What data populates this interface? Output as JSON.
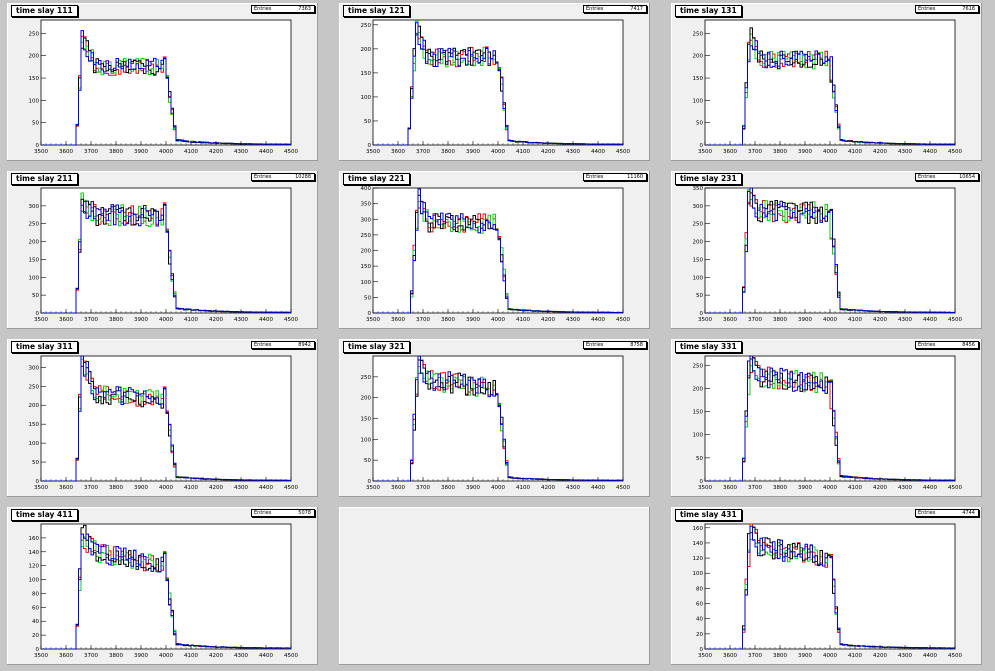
{
  "colors": {
    "series1": "#000000",
    "series2": "#e01010",
    "series3": "#10d010",
    "series4": "#0000cc"
  },
  "chart_data": [
    {
      "type": "histogram",
      "title": "time slay 111",
      "stat_label": "Entries",
      "stat_value": "7363",
      "ylim": [
        0,
        280
      ],
      "yticks": [
        0,
        50,
        100,
        150,
        200,
        250
      ],
      "xlim": [
        3500,
        4500
      ],
      "xticks": [
        3500,
        3600,
        3700,
        3800,
        3900,
        4000,
        4100,
        4200,
        4300,
        4400,
        4500
      ],
      "shape": {
        "rise_start": 3640,
        "rise_end": 3665,
        "plateau_start": 175,
        "plateau_end": 175,
        "peak": 240,
        "fall_start": 3995,
        "fall_end": 4040,
        "tail": 10
      }
    },
    {
      "type": "histogram",
      "title": "time slay 121",
      "stat_label": "Entries",
      "stat_value": "7417",
      "ylim": [
        0,
        260
      ],
      "yticks": [
        0,
        50,
        100,
        150,
        200,
        250
      ],
      "xlim": [
        3500,
        4500
      ],
      "xticks": [
        3500,
        3600,
        3700,
        3800,
        3900,
        4000,
        4100,
        4200,
        4300,
        4400,
        4500
      ],
      "shape": {
        "rise_start": 3640,
        "rise_end": 3675,
        "plateau_start": 180,
        "plateau_end": 185,
        "peak": 245,
        "fall_start": 4000,
        "fall_end": 4040,
        "tail": 8
      }
    },
    {
      "type": "histogram",
      "title": "time slay 131",
      "stat_label": "Entries",
      "stat_value": "7618",
      "ylim": [
        0,
        280
      ],
      "yticks": [
        0,
        50,
        100,
        150,
        200,
        250
      ],
      "xlim": [
        3500,
        4500
      ],
      "xticks": [
        3500,
        3600,
        3700,
        3800,
        3900,
        4000,
        4100,
        4200,
        4300,
        4400,
        4500
      ],
      "shape": {
        "rise_start": 3650,
        "rise_end": 3680,
        "plateau_start": 190,
        "plateau_end": 190,
        "peak": 255,
        "fall_start": 4000,
        "fall_end": 4040,
        "tail": 10
      }
    },
    {
      "type": "histogram",
      "title": "time slay 211",
      "stat_label": "Entries",
      "stat_value": "10288",
      "ylim": [
        0,
        350
      ],
      "yticks": [
        0,
        50,
        100,
        150,
        200,
        250,
        300
      ],
      "xlim": [
        3500,
        4500
      ],
      "xticks": [
        3500,
        3600,
        3700,
        3800,
        3900,
        4000,
        4100,
        4200,
        4300,
        4400,
        4500
      ],
      "shape": {
        "rise_start": 3640,
        "rise_end": 3665,
        "plateau_start": 275,
        "plateau_end": 270,
        "peak": 310,
        "fall_start": 3995,
        "fall_end": 4040,
        "tail": 12
      }
    },
    {
      "type": "histogram",
      "title": "time slay 221",
      "stat_label": "Entries",
      "stat_value": "11160",
      "ylim": [
        0,
        400
      ],
      "yticks": [
        0,
        50,
        100,
        150,
        200,
        250,
        300,
        350,
        400
      ],
      "xlim": [
        3500,
        4500
      ],
      "xticks": [
        3500,
        3600,
        3700,
        3800,
        3900,
        4000,
        4100,
        4200,
        4300,
        4400,
        4500
      ],
      "shape": {
        "rise_start": 3650,
        "rise_end": 3680,
        "plateau_start": 290,
        "plateau_end": 285,
        "peak": 370,
        "fall_start": 4000,
        "fall_end": 4040,
        "tail": 12
      }
    },
    {
      "type": "histogram",
      "title": "time slay 231",
      "stat_label": "Entries",
      "stat_value": "10654",
      "ylim": [
        0,
        350
      ],
      "yticks": [
        0,
        50,
        100,
        150,
        200,
        250,
        300,
        350
      ],
      "xlim": [
        3500,
        4500
      ],
      "xticks": [
        3500,
        3600,
        3700,
        3800,
        3900,
        4000,
        4100,
        4200,
        4300,
        4400,
        4500
      ],
      "shape": {
        "rise_start": 3650,
        "rise_end": 3675,
        "plateau_start": 285,
        "plateau_end": 280,
        "peak": 335,
        "fall_start": 4000,
        "fall_end": 4040,
        "tail": 10
      }
    },
    {
      "type": "histogram",
      "title": "time slay 311",
      "stat_label": "Entries",
      "stat_value": "8942",
      "ylim": [
        0,
        330
      ],
      "yticks": [
        0,
        50,
        100,
        150,
        200,
        250,
        300
      ],
      "xlim": [
        3500,
        4500
      ],
      "xticks": [
        3500,
        3600,
        3700,
        3800,
        3900,
        4000,
        4100,
        4200,
        4300,
        4400,
        4500
      ],
      "shape": {
        "rise_start": 3640,
        "rise_end": 3665,
        "plateau_start": 230,
        "plateau_end": 215,
        "peak": 325,
        "fall_start": 3995,
        "fall_end": 4040,
        "tail": 10
      }
    },
    {
      "type": "histogram",
      "title": "time slay 321",
      "stat_label": "Entries",
      "stat_value": "8758",
      "ylim": [
        0,
        300
      ],
      "yticks": [
        0,
        50,
        100,
        150,
        200,
        250
      ],
      "xlim": [
        3500,
        4500
      ],
      "xticks": [
        3500,
        3600,
        3700,
        3800,
        3900,
        4000,
        4100,
        4200,
        4300,
        4400,
        4500
      ],
      "shape": {
        "rise_start": 3650,
        "rise_end": 3680,
        "plateau_start": 245,
        "plateau_end": 220,
        "peak": 290,
        "fall_start": 4000,
        "fall_end": 4040,
        "tail": 8
      }
    },
    {
      "type": "histogram",
      "title": "time slay 331",
      "stat_label": "Entries",
      "stat_value": "8456",
      "ylim": [
        0,
        270
      ],
      "yticks": [
        0,
        50,
        100,
        150,
        200,
        250
      ],
      "xlim": [
        3500,
        4500
      ],
      "xticks": [
        3500,
        3600,
        3700,
        3800,
        3900,
        4000,
        4100,
        4200,
        4300,
        4400,
        4500
      ],
      "shape": {
        "rise_start": 3650,
        "rise_end": 3680,
        "plateau_start": 225,
        "plateau_end": 210,
        "peak": 265,
        "fall_start": 4000,
        "fall_end": 4040,
        "tail": 10
      }
    },
    {
      "type": "histogram",
      "title": "time slay 411",
      "stat_label": "Entries",
      "stat_value": "5078",
      "ylim": [
        0,
        180
      ],
      "yticks": [
        0,
        20,
        40,
        60,
        80,
        100,
        120,
        140,
        160
      ],
      "xlim": [
        3500,
        4500
      ],
      "xticks": [
        3500,
        3600,
        3700,
        3800,
        3900,
        4000,
        4100,
        4200,
        4300,
        4400,
        4500
      ],
      "shape": {
        "rise_start": 3640,
        "rise_end": 3665,
        "plateau_start": 140,
        "plateau_end": 120,
        "peak": 165,
        "fall_start": 3995,
        "fall_end": 4040,
        "tail": 6
      }
    },
    null,
    {
      "type": "histogram",
      "title": "time slay 431",
      "stat_label": "Entries",
      "stat_value": "4744",
      "ylim": [
        0,
        165
      ],
      "yticks": [
        0,
        20,
        40,
        60,
        80,
        100,
        120,
        140,
        160
      ],
      "xlim": [
        3500,
        4500
      ],
      "xticks": [
        3500,
        3600,
        3700,
        3800,
        3900,
        4000,
        4100,
        4200,
        4300,
        4400,
        4500
      ],
      "shape": {
        "rise_start": 3650,
        "rise_end": 3680,
        "plateau_start": 135,
        "plateau_end": 120,
        "peak": 158,
        "fall_start": 4000,
        "fall_end": 4040,
        "tail": 5
      }
    }
  ]
}
